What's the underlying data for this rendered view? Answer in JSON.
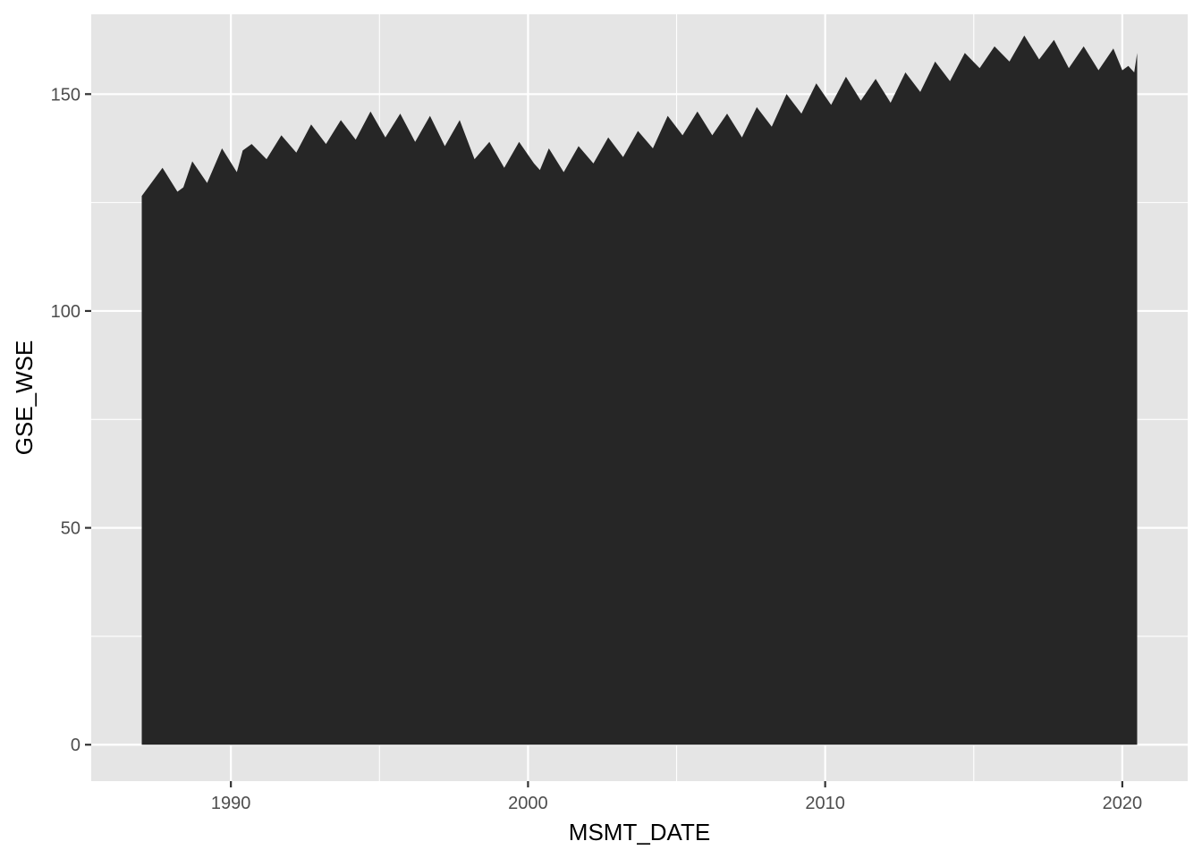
{
  "chart_data": {
    "type": "area",
    "title": "",
    "xlabel": "MSMT_DATE",
    "ylabel": "GSE_WSE",
    "xlim": [
      1985.3,
      2022.2
    ],
    "ylim": [
      -8.4,
      168.4
    ],
    "x_ticks": [
      1990,
      2000,
      2010,
      2020
    ],
    "x_tick_labels": [
      "1990",
      "2000",
      "2010",
      "2020"
    ],
    "y_ticks": [
      0,
      50,
      100,
      150
    ],
    "y_tick_labels": [
      "0",
      "50",
      "100",
      "150"
    ],
    "grid": true,
    "legend": "none",
    "colors": {
      "panel": "#e5e5e5",
      "grid": "#ffffff",
      "fill": "#262626",
      "tick_text": "#4d4d4d",
      "title_text": "#000000"
    },
    "series": [
      {
        "x": [
          1987.0,
          1987.7,
          1988.2,
          1988.4,
          1988.7,
          1989.2,
          1989.7,
          1990.2,
          1990.4,
          1990.7,
          1991.2,
          1991.7,
          1992.2,
          1992.7,
          1993.2,
          1993.7,
          1994.2,
          1994.7,
          1995.2,
          1995.7,
          1996.2,
          1996.7,
          1997.2,
          1997.7,
          1998.2,
          1998.7,
          1999.2,
          1999.7,
          2000.2,
          2000.4,
          2000.7,
          2001.2,
          2001.7,
          2002.2,
          2002.7,
          2003.2,
          2003.7,
          2004.2,
          2004.7,
          2005.2,
          2005.7,
          2006.2,
          2006.7,
          2007.2,
          2007.7,
          2008.2,
          2008.7,
          2009.2,
          2009.7,
          2010.2,
          2010.7,
          2011.2,
          2011.7,
          2012.2,
          2012.7,
          2013.2,
          2013.7,
          2014.2,
          2014.7,
          2015.2,
          2015.7,
          2016.2,
          2016.7,
          2017.2,
          2017.7,
          2018.2,
          2018.7,
          2019.2,
          2019.7,
          2020.0,
          2020.2,
          2020.4,
          2020.5
        ],
        "y": [
          126.5,
          133.0,
          127.5,
          128.5,
          134.5,
          129.5,
          137.5,
          132.0,
          137.0,
          138.5,
          135.0,
          140.5,
          136.5,
          143.0,
          138.5,
          144.0,
          139.5,
          146.0,
          140.0,
          145.5,
          139.0,
          145.0,
          138.0,
          144.0,
          135.0,
          139.0,
          133.0,
          139.0,
          134.0,
          132.5,
          137.5,
          132.0,
          138.0,
          134.0,
          140.0,
          135.5,
          141.5,
          137.5,
          145.0,
          140.5,
          146.0,
          140.5,
          145.5,
          140.0,
          147.0,
          142.5,
          150.0,
          145.5,
          152.5,
          147.5,
          154.0,
          148.5,
          153.5,
          148.0,
          155.0,
          150.5,
          157.5,
          153.0,
          159.5,
          156.0,
          161.0,
          157.5,
          163.5,
          158.0,
          162.5,
          156.0,
          161.0,
          155.5,
          160.5,
          155.5,
          156.5,
          155.0,
          159.5
        ]
      }
    ]
  }
}
